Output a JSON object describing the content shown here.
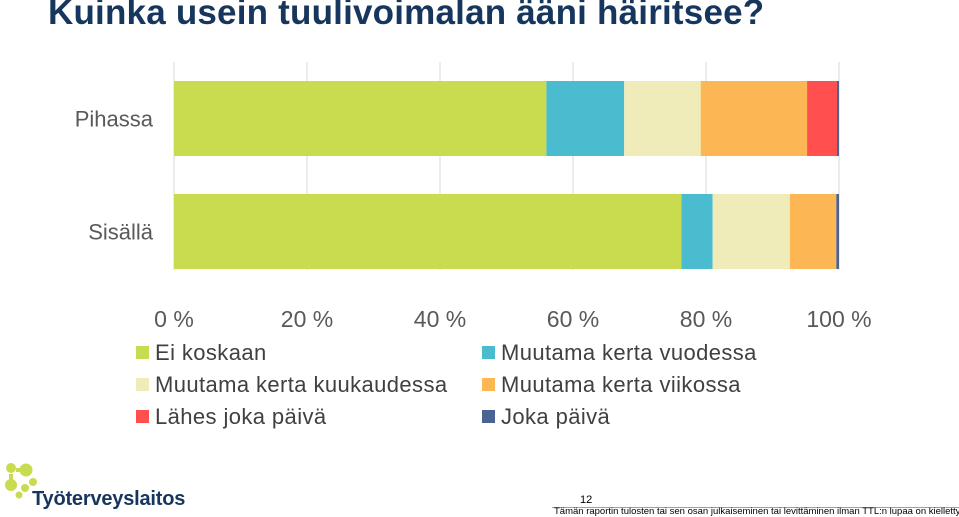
{
  "title": "Kuinka usein tuulivoimalan ääni häiritsee?",
  "chart_data": {
    "type": "bar",
    "orientation": "horizontal",
    "stacked": true,
    "categories": [
      "Pihassa",
      "Sisällä"
    ],
    "series": [
      {
        "name": "Ei koskaan",
        "color": "#c9dc4f",
        "values": [
          56,
          76.3
        ]
      },
      {
        "name": "Muutama kerta vuodessa",
        "color": "#4bbcd0",
        "values": [
          11.7,
          4.7
        ]
      },
      {
        "name": "Muutama kerta kuukaudessa",
        "color": "#f0ecba",
        "values": [
          11.5,
          11.6
        ]
      },
      {
        "name": "Muutama kerta viikossa",
        "color": "#fcb653",
        "values": [
          16,
          7
        ]
      },
      {
        "name": "Lähes joka päivä",
        "color": "#ff4f4f",
        "values": [
          4.5,
          0
        ]
      },
      {
        "name": "Joka päivä",
        "color": "#4b6294",
        "values": [
          0.3,
          0.4
        ]
      }
    ],
    "xlim": [
      0,
      100
    ],
    "x_ticks": [
      "0 %",
      "20 %",
      "40 %",
      "60 %",
      "80 %",
      "100 %"
    ],
    "grid": true,
    "legend_position": "bottom"
  },
  "logo": {
    "text": "Työterveyslaitos",
    "icon": "ttl-logo-icon"
  },
  "footer": {
    "page_number": "12",
    "text": "Tämän raportin tulosten tai sen osan julkaiseminen tai levittäminen ilman TTL:n lupaa on kielletty."
  }
}
